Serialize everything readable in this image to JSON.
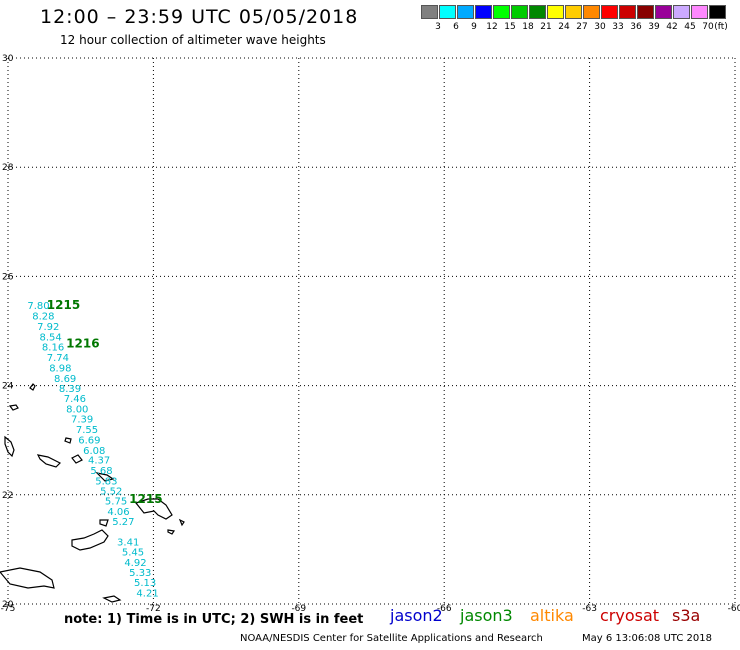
{
  "header": {
    "title": "12:00 – 23:59 UTC 05/05/2018",
    "subtitle": "12 hour collection of altimeter wave heights"
  },
  "legend": {
    "unit": "(ft)",
    "items": [
      {
        "label": "3",
        "color": "#808080"
      },
      {
        "label": "6",
        "color": "#00ffff"
      },
      {
        "label": "9",
        "color": "#00aaff"
      },
      {
        "label": "12",
        "color": "#0000ff"
      },
      {
        "label": "15",
        "color": "#00ff00"
      },
      {
        "label": "18",
        "color": "#00cc00"
      },
      {
        "label": "21",
        "color": "#008800"
      },
      {
        "label": "24",
        "color": "#ffff00"
      },
      {
        "label": "27",
        "color": "#ffcc00"
      },
      {
        "label": "30",
        "color": "#ff8800"
      },
      {
        "label": "33",
        "color": "#ff0000"
      },
      {
        "label": "36",
        "color": "#cc0000"
      },
      {
        "label": "39",
        "color": "#880000"
      },
      {
        "label": "42",
        "color": "#990099"
      },
      {
        "label": "45",
        "color": "#ccaaff"
      },
      {
        "label": "70",
        "color": "#ff88ff"
      },
      {
        "label": "",
        "color": "#000000"
      }
    ]
  },
  "map": {
    "lon_range": [
      -75,
      -60
    ],
    "lat_range": [
      20,
      30
    ],
    "lon_ticks": [
      "-75",
      "-72",
      "-69",
      "-66",
      "-63",
      "-60"
    ],
    "lat_ticks": [
      "30",
      "28",
      "26",
      "24",
      "22",
      "20"
    ],
    "point_color": "#00bbcc",
    "pass_color": "#007700",
    "pass_labels": [
      {
        "text": "1215",
        "lon": -74.2,
        "lat": 25.4
      },
      {
        "text": "1216",
        "lon": -73.8,
        "lat": 24.7
      },
      {
        "text": "1215",
        "lon": -72.5,
        "lat": 21.85
      }
    ],
    "swh_points": [
      {
        "v": "7.80",
        "lon": -74.6,
        "lat": 25.4
      },
      {
        "v": "8.28",
        "lon": -74.5,
        "lat": 25.21
      },
      {
        "v": "7.92",
        "lon": -74.4,
        "lat": 25.02
      },
      {
        "v": "8.54",
        "lon": -74.35,
        "lat": 24.83
      },
      {
        "v": "8.16",
        "lon": -74.3,
        "lat": 24.64
      },
      {
        "v": "7.74",
        "lon": -74.2,
        "lat": 24.45
      },
      {
        "v": "8.98",
        "lon": -74.15,
        "lat": 24.26
      },
      {
        "v": "8.69",
        "lon": -74.05,
        "lat": 24.07
      },
      {
        "v": "8.39",
        "lon": -73.95,
        "lat": 23.88
      },
      {
        "v": "7.46",
        "lon": -73.85,
        "lat": 23.7
      },
      {
        "v": "8.00",
        "lon": -73.8,
        "lat": 23.51
      },
      {
        "v": "7.39",
        "lon": -73.7,
        "lat": 23.32
      },
      {
        "v": "7.55",
        "lon": -73.6,
        "lat": 23.13
      },
      {
        "v": "6.69",
        "lon": -73.55,
        "lat": 22.94
      },
      {
        "v": "6.08",
        "lon": -73.45,
        "lat": 22.75
      },
      {
        "v": "4.37",
        "lon": -73.35,
        "lat": 22.57
      },
      {
        "v": "5.68",
        "lon": -73.3,
        "lat": 22.38
      },
      {
        "v": "5.83",
        "lon": -73.2,
        "lat": 22.19
      },
      {
        "v": "5.52",
        "lon": -73.1,
        "lat": 22.01
      },
      {
        "v": "5.75",
        "lon": -73.0,
        "lat": 21.82
      },
      {
        "v": "4.06",
        "lon": -72.95,
        "lat": 21.63
      },
      {
        "v": "5.27",
        "lon": -72.85,
        "lat": 21.45
      },
      {
        "v": "3.41",
        "lon": -72.75,
        "lat": 21.07
      },
      {
        "v": "5.45",
        "lon": -72.65,
        "lat": 20.89
      },
      {
        "v": "4.92",
        "lon": -72.6,
        "lat": 20.7
      },
      {
        "v": "5.33",
        "lon": -72.5,
        "lat": 20.51
      },
      {
        "v": "5.13",
        "lon": -72.4,
        "lat": 20.33
      },
      {
        "v": "4.21",
        "lon": -72.35,
        "lat": 20.14
      }
    ]
  },
  "satellites": [
    {
      "name": "jason2",
      "color": "#0000cc"
    },
    {
      "name": "jason3",
      "color": "#008800"
    },
    {
      "name": "altika",
      "color": "#ff8800"
    },
    {
      "name": "cryosat",
      "color": "#cc0000"
    },
    {
      "name": "s3a",
      "color": "#990000"
    }
  ],
  "footer": {
    "note": "note: 1) Time is in UTC; 2) SWH is in feet",
    "credit": "NOAA/NESDIS Center for Satellite Applications and Research",
    "timestamp": "May  6 13:06:08 UTC 2018"
  }
}
